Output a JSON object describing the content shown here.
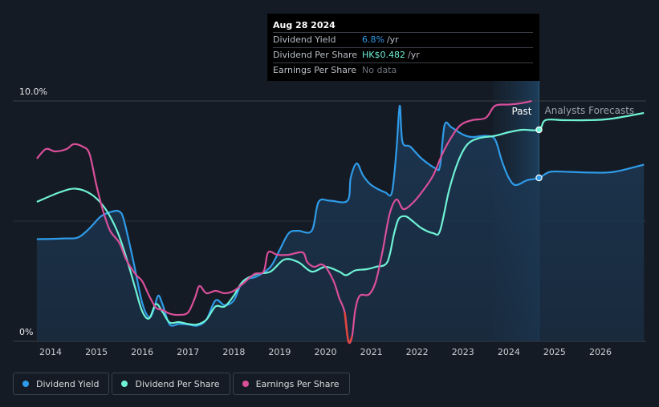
{
  "tooltip": {
    "date": "Aug 28 2024",
    "rows": [
      {
        "label": "Dividend Yield",
        "value": "6.8%",
        "unit": "/yr"
      },
      {
        "label": "Dividend Per Share",
        "value": "HK$0.482",
        "unit": "/yr"
      },
      {
        "label": "Earnings Per Share",
        "value": "No data",
        "unit": ""
      }
    ]
  },
  "legend": [
    {
      "label": "Dividend Yield",
      "color": "#2f9be8"
    },
    {
      "label": "Dividend Per Share",
      "color": "#6ff2d6"
    },
    {
      "label": "Earnings Per Share",
      "color": "#d94f9a"
    }
  ],
  "chart_data": {
    "type": "line",
    "x_start": 2013.7,
    "x_end": 2026.95,
    "ylim": [
      0,
      10
    ],
    "y_ticks": [
      {
        "label": "10.0%",
        "value": 10
      },
      {
        "label": "0%",
        "value": 0
      }
    ],
    "x_ticks": [
      "2014",
      "2015",
      "2016",
      "2017",
      "2018",
      "2019",
      "2020",
      "2021",
      "2022",
      "2023",
      "2024",
      "2025",
      "2026"
    ],
    "past_label": "Past",
    "forecast_label": "Analysts Forecasts",
    "forecast_start": 2024.66,
    "forecast_shade_start": 2023.66,
    "colors": {
      "yield": "#2f9be8",
      "dps": "#6ff2d6",
      "eps": "#d94f9a",
      "eps_neg": "#e2453c"
    },
    "series": [
      {
        "key": "yield",
        "name": "Dividend Yield",
        "area": true,
        "points": [
          [
            2013.7,
            4.25
          ],
          [
            2014.3,
            4.28
          ],
          [
            2014.6,
            4.32
          ],
          [
            2014.85,
            4.7
          ],
          [
            2015.1,
            5.2
          ],
          [
            2015.35,
            5.4
          ],
          [
            2015.5,
            5.4
          ],
          [
            2015.6,
            5.05
          ],
          [
            2015.8,
            3.4
          ],
          [
            2016.0,
            1.6
          ],
          [
            2016.15,
            1.0
          ],
          [
            2016.25,
            1.3
          ],
          [
            2016.35,
            1.9
          ],
          [
            2016.45,
            1.5
          ],
          [
            2016.6,
            0.7
          ],
          [
            2016.8,
            0.72
          ],
          [
            2017.0,
            0.7
          ],
          [
            2017.2,
            0.65
          ],
          [
            2017.4,
            0.9
          ],
          [
            2017.6,
            1.7
          ],
          [
            2017.8,
            1.5
          ],
          [
            2018.0,
            1.7
          ],
          [
            2018.2,
            2.5
          ],
          [
            2018.5,
            2.7
          ],
          [
            2018.8,
            3.1
          ],
          [
            2019.0,
            3.8
          ],
          [
            2019.2,
            4.5
          ],
          [
            2019.4,
            4.6
          ],
          [
            2019.7,
            4.6
          ],
          [
            2019.85,
            5.8
          ],
          [
            2020.1,
            5.85
          ],
          [
            2020.48,
            5.85
          ],
          [
            2020.55,
            6.8
          ],
          [
            2020.68,
            7.4
          ],
          [
            2020.82,
            6.9
          ],
          [
            2021.0,
            6.5
          ],
          [
            2021.3,
            6.2
          ],
          [
            2021.45,
            6.2
          ],
          [
            2021.55,
            8.0
          ],
          [
            2021.62,
            9.8
          ],
          [
            2021.68,
            8.3
          ],
          [
            2021.85,
            8.1
          ],
          [
            2022.1,
            7.6
          ],
          [
            2022.4,
            7.2
          ],
          [
            2022.5,
            7.3
          ],
          [
            2022.6,
            9.0
          ],
          [
            2022.75,
            8.9
          ],
          [
            2023.0,
            8.6
          ],
          [
            2023.2,
            8.5
          ],
          [
            2023.5,
            8.55
          ],
          [
            2023.7,
            8.4
          ],
          [
            2023.85,
            7.5
          ],
          [
            2024.0,
            6.8
          ],
          [
            2024.15,
            6.5
          ],
          [
            2024.4,
            6.7
          ],
          [
            2024.66,
            6.8
          ],
          [
            2024.9,
            7.05
          ],
          [
            2025.3,
            7.05
          ],
          [
            2025.8,
            7.02
          ],
          [
            2026.3,
            7.05
          ],
          [
            2026.95,
            7.35
          ]
        ]
      },
      {
        "key": "dps",
        "name": "Dividend Per Share",
        "area": false,
        "points": [
          [
            2013.7,
            5.8
          ],
          [
            2014.2,
            6.2
          ],
          [
            2014.55,
            6.35
          ],
          [
            2014.9,
            6.1
          ],
          [
            2015.2,
            5.5
          ],
          [
            2015.45,
            4.6
          ],
          [
            2015.65,
            3.5
          ],
          [
            2015.85,
            2.2
          ],
          [
            2016.0,
            1.25
          ],
          [
            2016.15,
            0.95
          ],
          [
            2016.3,
            1.55
          ],
          [
            2016.45,
            1.2
          ],
          [
            2016.6,
            0.78
          ],
          [
            2016.8,
            0.8
          ],
          [
            2017.0,
            0.72
          ],
          [
            2017.2,
            0.7
          ],
          [
            2017.4,
            0.9
          ],
          [
            2017.6,
            1.45
          ],
          [
            2017.8,
            1.45
          ],
          [
            2018.0,
            1.9
          ],
          [
            2018.2,
            2.5
          ],
          [
            2018.5,
            2.8
          ],
          [
            2018.8,
            2.9
          ],
          [
            2019.1,
            3.4
          ],
          [
            2019.4,
            3.3
          ],
          [
            2019.7,
            2.9
          ],
          [
            2020.0,
            3.1
          ],
          [
            2020.3,
            2.9
          ],
          [
            2020.45,
            2.75
          ],
          [
            2020.65,
            2.95
          ],
          [
            2020.9,
            3.0
          ],
          [
            2021.1,
            3.1
          ],
          [
            2021.35,
            3.3
          ],
          [
            2021.5,
            4.5
          ],
          [
            2021.6,
            5.1
          ],
          [
            2021.75,
            5.2
          ],
          [
            2021.9,
            5.0
          ],
          [
            2022.1,
            4.7
          ],
          [
            2022.35,
            4.5
          ],
          [
            2022.5,
            4.6
          ],
          [
            2022.7,
            6.3
          ],
          [
            2022.9,
            7.5
          ],
          [
            2023.1,
            8.2
          ],
          [
            2023.35,
            8.45
          ],
          [
            2023.7,
            8.55
          ],
          [
            2024.0,
            8.7
          ],
          [
            2024.3,
            8.8
          ],
          [
            2024.66,
            8.8
          ],
          [
            2024.8,
            9.2
          ],
          [
            2025.2,
            9.2
          ],
          [
            2025.7,
            9.2
          ],
          [
            2026.2,
            9.25
          ],
          [
            2026.95,
            9.5
          ]
        ]
      },
      {
        "key": "eps",
        "name": "Earnings Per Share",
        "area": false,
        "points": [
          [
            2013.7,
            7.6
          ],
          [
            2013.9,
            8.0
          ],
          [
            2014.1,
            7.9
          ],
          [
            2014.35,
            8.0
          ],
          [
            2014.5,
            8.2
          ],
          [
            2014.7,
            8.1
          ],
          [
            2014.85,
            7.8
          ],
          [
            2015.0,
            6.5
          ],
          [
            2015.15,
            5.4
          ],
          [
            2015.3,
            4.6
          ],
          [
            2015.5,
            4.1
          ],
          [
            2015.65,
            3.4
          ],
          [
            2015.85,
            2.8
          ],
          [
            2016.0,
            2.5
          ],
          [
            2016.15,
            1.9
          ],
          [
            2016.3,
            1.4
          ],
          [
            2016.45,
            1.3
          ],
          [
            2016.6,
            1.15
          ],
          [
            2016.8,
            1.1
          ],
          [
            2017.0,
            1.2
          ],
          [
            2017.15,
            1.8
          ],
          [
            2017.25,
            2.3
          ],
          [
            2017.4,
            2.0
          ],
          [
            2017.6,
            2.1
          ],
          [
            2017.8,
            2.0
          ],
          [
            2018.0,
            2.1
          ],
          [
            2018.2,
            2.4
          ],
          [
            2018.45,
            2.8
          ],
          [
            2018.65,
            2.9
          ],
          [
            2018.75,
            3.7
          ],
          [
            2018.95,
            3.6
          ],
          [
            2019.2,
            3.6
          ],
          [
            2019.5,
            3.7
          ],
          [
            2019.6,
            3.3
          ],
          [
            2019.75,
            3.1
          ],
          [
            2019.9,
            3.2
          ],
          [
            2020.0,
            3.1
          ],
          [
            2020.1,
            2.8
          ],
          [
            2020.2,
            2.4
          ],
          [
            2020.3,
            1.8
          ],
          [
            2020.42,
            1.2
          ],
          [
            2020.5,
            0.0
          ],
          [
            2020.58,
            0.2
          ],
          [
            2020.65,
            1.3
          ],
          [
            2020.75,
            1.9
          ],
          [
            2020.95,
            1.95
          ],
          [
            2021.1,
            2.5
          ],
          [
            2021.25,
            3.8
          ],
          [
            2021.4,
            5.3
          ],
          [
            2021.55,
            5.9
          ],
          [
            2021.7,
            5.5
          ],
          [
            2021.9,
            5.75
          ],
          [
            2022.1,
            6.2
          ],
          [
            2022.35,
            6.9
          ],
          [
            2022.55,
            7.8
          ],
          [
            2022.75,
            8.5
          ],
          [
            2022.95,
            9.0
          ],
          [
            2023.2,
            9.2
          ],
          [
            2023.5,
            9.3
          ],
          [
            2023.7,
            9.8
          ],
          [
            2024.0,
            9.85
          ],
          [
            2024.25,
            9.9
          ],
          [
            2024.5,
            10.0
          ]
        ]
      }
    ],
    "markers": [
      {
        "series": "dps",
        "x": 2024.66,
        "y": 8.8
      },
      {
        "series": "yield",
        "x": 2024.66,
        "y": 6.8
      }
    ]
  }
}
